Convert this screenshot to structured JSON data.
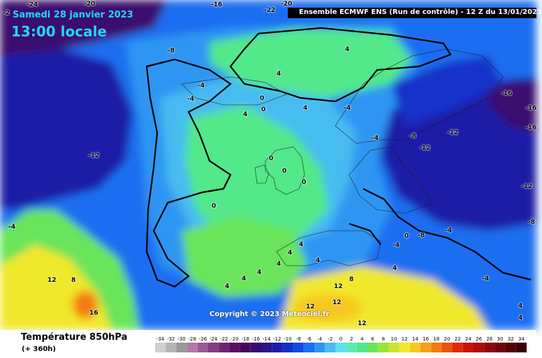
{
  "header": {
    "date": "Samedi 28 janvier 2023",
    "time": "13:00 locale",
    "run_info": "Ensemble ECMWF ENS  (Run de contrôle)  -  12 Z du 13/01/2023"
  },
  "copyright": "Copyright © 2023 Meteociel.fr",
  "footer": {
    "variable": "Température 850hPa",
    "lead_time": "(+ 360h)"
  },
  "legend": {
    "stops": [
      {
        "value": "-34",
        "color": "#cfcfcf"
      },
      {
        "value": "-32",
        "color": "#b4b4b4"
      },
      {
        "value": "-30",
        "color": "#9a9a9a"
      },
      {
        "value": "-28",
        "color": "#b07aa8"
      },
      {
        "value": "-26",
        "color": "#9a5a96"
      },
      {
        "value": "-24",
        "color": "#843c84"
      },
      {
        "value": "-22",
        "color": "#6e2472"
      },
      {
        "value": "-20",
        "color": "#5a1060"
      },
      {
        "value": "-18",
        "color": "#48085a"
      },
      {
        "value": "-16",
        "color": "#3a0a6e"
      },
      {
        "value": "-14",
        "color": "#2c1488"
      },
      {
        "value": "-12",
        "color": "#1c1ea6"
      },
      {
        "value": "-10",
        "color": "#1230c8"
      },
      {
        "value": "-8",
        "color": "#0e48e6"
      },
      {
        "value": "-6",
        "color": "#1a6ef0"
      },
      {
        "value": "-4",
        "color": "#2e96f2"
      },
      {
        "value": "-2",
        "color": "#46bcf0"
      },
      {
        "value": "0",
        "color": "#5ee0f0"
      },
      {
        "value": "2",
        "color": "#5eeab4"
      },
      {
        "value": "4",
        "color": "#52e88a"
      },
      {
        "value": "6",
        "color": "#6ae45a"
      },
      {
        "value": "8",
        "color": "#98e43c"
      },
      {
        "value": "10",
        "color": "#c8e430"
      },
      {
        "value": "12",
        "color": "#f0e82c"
      },
      {
        "value": "14",
        "color": "#f8c820"
      },
      {
        "value": "16",
        "color": "#f8a018"
      },
      {
        "value": "18",
        "color": "#f47a12"
      },
      {
        "value": "20",
        "color": "#ee520e"
      },
      {
        "value": "22",
        "color": "#e22a0a"
      },
      {
        "value": "24",
        "color": "#c81408"
      },
      {
        "value": "26",
        "color": "#ac0c0a"
      },
      {
        "value": "28",
        "color": "#8c060a"
      },
      {
        "value": "30",
        "color": "#6e040a"
      },
      {
        "value": "32",
        "color": "#520206"
      },
      {
        "value": "34",
        "color": "#380104"
      }
    ]
  },
  "contour_labels": [
    "-24",
    "-20",
    "-16",
    "-22",
    "-20",
    "-2",
    "-8",
    "-4",
    "-4",
    "-12",
    "-4",
    "4",
    "4",
    "-4",
    "-16",
    "-16",
    "-8",
    "-12",
    "-4",
    "-12",
    "-16",
    "0",
    "0",
    "4",
    "4",
    "0",
    "0",
    "0",
    "0",
    "0",
    "-12",
    "-4",
    "-8",
    "-8",
    "-4",
    "4",
    "4",
    "4",
    "4",
    "4",
    "4",
    "12",
    "8",
    "16",
    "12",
    "8",
    "12",
    "12",
    "12",
    "-4",
    "4",
    "4",
    "4",
    "4"
  ]
}
